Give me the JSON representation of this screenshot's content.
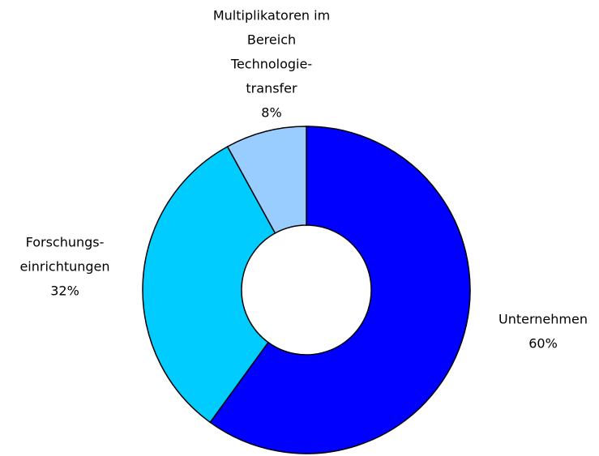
{
  "chart_data": {
    "type": "donut",
    "categories": [
      [
        "Unternehmen"
      ],
      [
        "Forschungs-",
        "einrichtungen"
      ],
      [
        "Multiplikatoren im",
        "Bereich",
        "Technologie-",
        "transfer"
      ]
    ],
    "values": [
      60,
      32,
      8
    ],
    "value_labels": [
      "60%",
      "32%",
      "8%"
    ],
    "colors": [
      "#0000ff",
      "#00ccff",
      "#99ccff"
    ]
  }
}
